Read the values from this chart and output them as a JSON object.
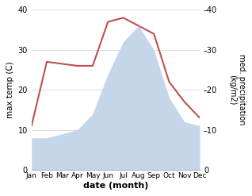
{
  "months": [
    "Jan",
    "Feb",
    "Mar",
    "Apr",
    "May",
    "Jun",
    "Jul",
    "Aug",
    "Sep",
    "Oct",
    "Nov",
    "Dec"
  ],
  "temperature": [
    11,
    27,
    26.5,
    26,
    26,
    37,
    38,
    36,
    34,
    22,
    17,
    13
  ],
  "precipitation": [
    8,
    8,
    9,
    10,
    14,
    24,
    32,
    36,
    30,
    18,
    12,
    11
  ],
  "temp_color": "#c0504d",
  "precip_color": "#c5d5ea",
  "ylim": [
    0,
    40
  ],
  "yticks": [
    0,
    10,
    20,
    30,
    40
  ],
  "xlabel": "date (month)",
  "ylabel_left": "max temp (C)",
  "ylabel_right": "med. precipitation\n(kg/m2)",
  "bg_color": "#ffffff",
  "grid_color": "#cccccc"
}
